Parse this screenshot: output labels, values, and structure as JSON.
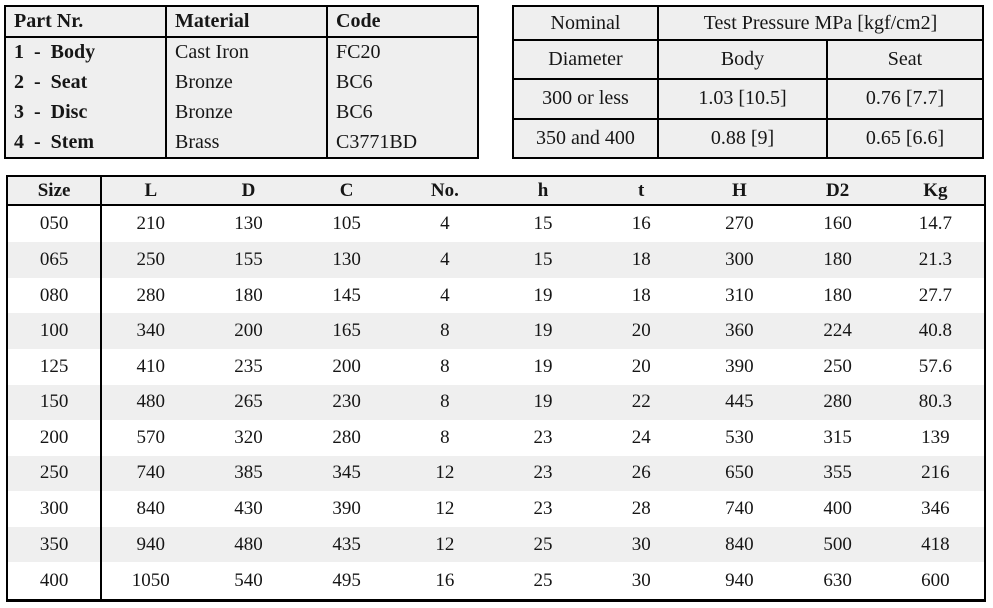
{
  "parts_table": {
    "headers": [
      "Part Nr.",
      "Material",
      "Code"
    ],
    "rows": [
      {
        "part": "1  -  Body",
        "material": "Cast Iron",
        "code": "FC20"
      },
      {
        "part": "2  -  Seat",
        "material": "Bronze",
        "code": "BC6"
      },
      {
        "part": "3  -  Disc",
        "material": "Bronze",
        "code": "BC6"
      },
      {
        "part": "4  -  Stem",
        "material": "Brass",
        "code": "C3771BD"
      }
    ]
  },
  "pressure_table": {
    "nominal_label": "Nominal",
    "diameter_label": "Diameter",
    "span_header": "Test Pressure MPa [kgf/cm2]",
    "body_label": "Body",
    "seat_label": "Seat",
    "rows": [
      {
        "diameter": "300 or less",
        "body": "1.03 [10.5]",
        "seat": "0.76 [7.7]"
      },
      {
        "diameter": "350 and 400",
        "body": "0.88 [9]",
        "seat": "0.65 [6.6]"
      }
    ]
  },
  "dimensions_table": {
    "headers": [
      "Size",
      "L",
      "D",
      "C",
      "No.",
      "h",
      "t",
      "H",
      "D2",
      "Kg"
    ],
    "rows": [
      [
        "050",
        "210",
        "130",
        "105",
        "4",
        "15",
        "16",
        "270",
        "160",
        "14.7"
      ],
      [
        "065",
        "250",
        "155",
        "130",
        "4",
        "15",
        "18",
        "300",
        "180",
        "21.3"
      ],
      [
        "080",
        "280",
        "180",
        "145",
        "4",
        "19",
        "18",
        "310",
        "180",
        "27.7"
      ],
      [
        "100",
        "340",
        "200",
        "165",
        "8",
        "19",
        "20",
        "360",
        "224",
        "40.8"
      ],
      [
        "125",
        "410",
        "235",
        "200",
        "8",
        "19",
        "20",
        "390",
        "250",
        "57.6"
      ],
      [
        "150",
        "480",
        "265",
        "230",
        "8",
        "19",
        "22",
        "445",
        "280",
        "80.3"
      ],
      [
        "200",
        "570",
        "320",
        "280",
        "8",
        "23",
        "24",
        "530",
        "315",
        "139"
      ],
      [
        "250",
        "740",
        "385",
        "345",
        "12",
        "23",
        "26",
        "650",
        "355",
        "216"
      ],
      [
        "300",
        "840",
        "430",
        "390",
        "12",
        "23",
        "28",
        "740",
        "400",
        "346"
      ],
      [
        "350",
        "940",
        "480",
        "435",
        "12",
        "25",
        "30",
        "840",
        "500",
        "418"
      ],
      [
        "400",
        "1050",
        "540",
        "495",
        "16",
        "25",
        "30",
        "940",
        "630",
        "600"
      ]
    ]
  },
  "colors": {
    "shade": "#efefef",
    "border": "#000000",
    "text": "#161616",
    "page_bg": "#ffffff"
  }
}
